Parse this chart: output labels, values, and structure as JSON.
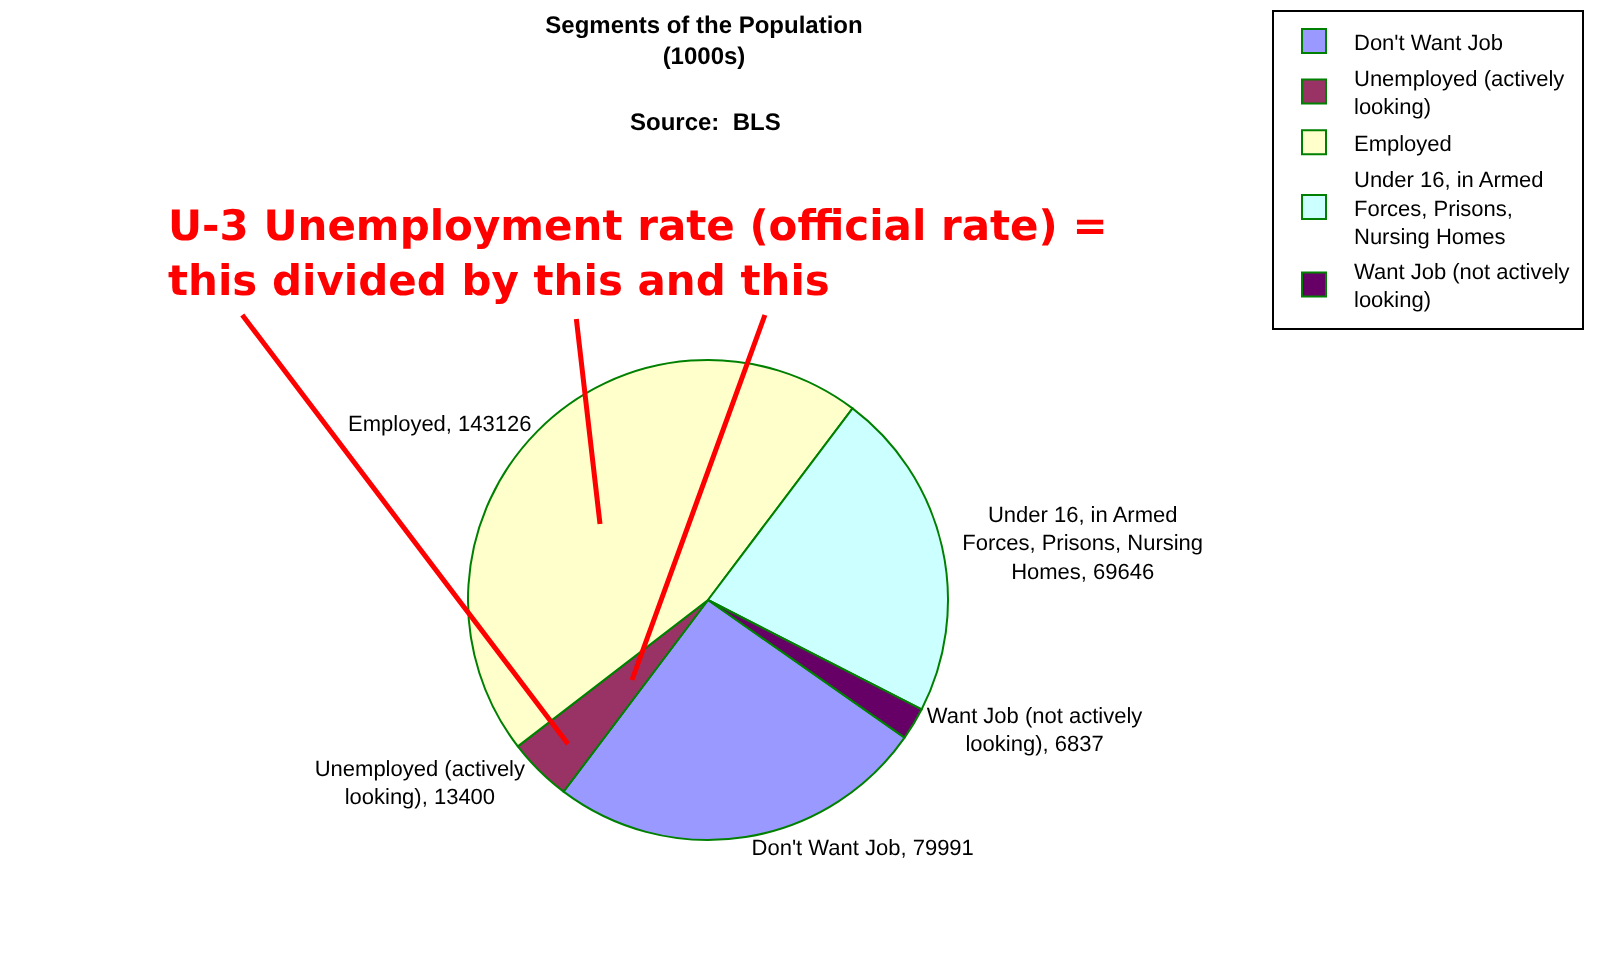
{
  "chart_data": {
    "type": "pie",
    "title": "Segments of the Population",
    "subtitle": "(1000s)",
    "categories": [
      "Don't Want Job",
      "Unemployed (actively looking)",
      "Employed",
      "Under 16, in Armed Forces, Prisons, Nursing Homes",
      "Want Job (not actively looking)"
    ],
    "values": [
      79991,
      13400,
      143126,
      69646,
      6837
    ],
    "value_labels": [
      "Don't Want Job, 79991",
      "Unemployed (actively looking), 13400",
      "Employed, 143126",
      "Under 16, in Armed Forces, Prisons, Nursing Homes, 69646",
      "Want Job (not actively looking), 6837"
    ],
    "colors": [
      "#9999ff",
      "#993366",
      "#ffffcc",
      "#ccffff",
      "#660066"
    ],
    "legend": "top right",
    "annotations": [
      "Source:  BLS",
      "U-3 Unemployment rate (official rate) = this divided by this and this"
    ]
  }
}
